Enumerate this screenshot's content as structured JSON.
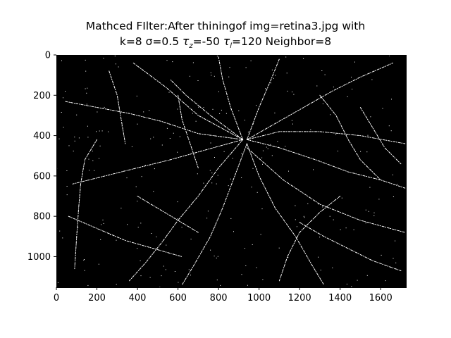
{
  "chart_data": {
    "type": "image",
    "title_line_1": "Mathced FIlter:After thiningof img=retina3.jpg with",
    "title_line_2": "k=8 σ=0.5 τz=-50 τl=120 Neighbor=8",
    "title_parts": {
      "k": "k=8",
      "sigma": "σ=0.5",
      "tau_z_sym": "τ",
      "tau_z_sub": "z",
      "tau_z_val": "=-50",
      "tau_l_sym": "τ",
      "tau_l_sub": "l",
      "tau_l_val": "=120",
      "neighbor": "Neighbor=8"
    },
    "x_ticks": [
      0,
      200,
      400,
      600,
      800,
      1000,
      1200,
      1400,
      1600
    ],
    "y_ticks": [
      0,
      200,
      400,
      600,
      800,
      1000
    ],
    "x_tick_labels": [
      "0",
      "200",
      "400",
      "600",
      "800",
      "1000",
      "1200",
      "1400",
      "1600"
    ],
    "y_tick_labels": [
      "0",
      "200",
      "400",
      "600",
      "800",
      "1000"
    ],
    "xlim": [
      0,
      1728
    ],
    "ylim": [
      1152,
      0
    ],
    "image": "binary thinned retinal vessel map, white lines on black background",
    "colors": {
      "background": "#000000",
      "vessels": "#ffffff"
    }
  }
}
